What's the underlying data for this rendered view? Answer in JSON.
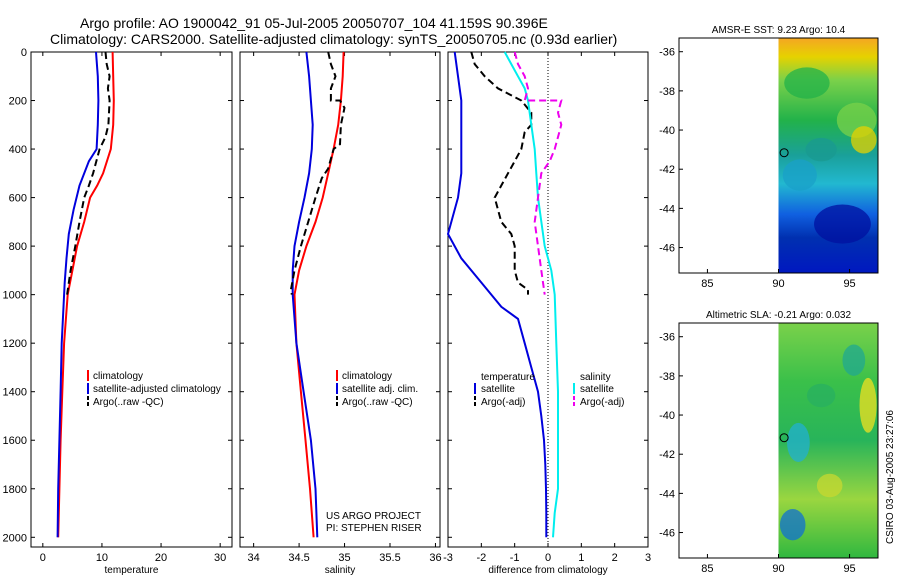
{
  "title": {
    "line1": "Argo profile: AO 1900042_91 05-Jul-2005 20050707_104 41.159S 90.396E",
    "line2": "Climatology: CARS2000. Satellite-adjusted climatology: synTS_20050705.nc (0.93d earlier)"
  },
  "credit": {
    "project": "US ARGO PROJECT",
    "pi": "PI: STEPHEN RISER",
    "stamp": "CSIRO 03-Aug-2005 23:27:06"
  },
  "colors": {
    "climatology": "#ff0000",
    "satellite": "#0000dd",
    "argo": "#000000",
    "salinity_sat": "#00eeee",
    "salinity_argo": "#ee00ee"
  },
  "chart_data": [
    {
      "type": "line",
      "id": "temperature",
      "xlabel": "temperature",
      "xlim": [
        -2,
        32
      ],
      "ylim": [
        0,
        2040
      ],
      "xticks": [
        0,
        10,
        20,
        30
      ],
      "yticks": [
        0,
        200,
        400,
        600,
        800,
        1000,
        1200,
        1400,
        1600,
        1800,
        2000
      ],
      "legend": [
        "climatology",
        "satellite-adjusted climatology",
        "Argo(..raw -QC)"
      ],
      "series": [
        {
          "name": "climatology",
          "style": "solid",
          "color": "#ff0000",
          "points": [
            [
              11.8,
              0
            ],
            [
              11.9,
              100
            ],
            [
              12.0,
              200
            ],
            [
              11.9,
              300
            ],
            [
              11.5,
              400
            ],
            [
              10.2,
              500
            ],
            [
              9.2,
              550
            ],
            [
              8.0,
              600
            ],
            [
              7.0,
              700
            ],
            [
              5.8,
              800
            ],
            [
              5.0,
              900
            ],
            [
              4.2,
              1000
            ],
            [
              3.6,
              1200
            ],
            [
              3.3,
              1400
            ],
            [
              3.0,
              1600
            ],
            [
              2.8,
              1800
            ],
            [
              2.6,
              2000
            ]
          ]
        },
        {
          "name": "satellite-adjusted climatology",
          "style": "solid",
          "color": "#0000dd",
          "points": [
            [
              9.0,
              0
            ],
            [
              9.3,
              100
            ],
            [
              9.4,
              200
            ],
            [
              9.3,
              300
            ],
            [
              9.1,
              400
            ],
            [
              7.8,
              450
            ],
            [
              6.2,
              550
            ],
            [
              5.2,
              650
            ],
            [
              4.4,
              750
            ],
            [
              4.0,
              850
            ],
            [
              3.7,
              950
            ],
            [
              3.5,
              1050
            ],
            [
              3.2,
              1200
            ],
            [
              3.0,
              1400
            ],
            [
              2.8,
              1600
            ],
            [
              2.6,
              1800
            ],
            [
              2.5,
              2000
            ]
          ]
        },
        {
          "name": "Argo(..raw -QC)",
          "style": "dashed",
          "color": "#000000",
          "points": [
            [
              10.6,
              0
            ],
            [
              10.8,
              50
            ],
            [
              11.3,
              100
            ],
            [
              11.0,
              150
            ],
            [
              11.3,
              200
            ],
            [
              11.1,
              300
            ],
            [
              10.6,
              350
            ],
            [
              9.6,
              400
            ],
            [
              8.5,
              500
            ],
            [
              7.8,
              550
            ],
            [
              7.0,
              600
            ],
            [
              6.2,
              700
            ],
            [
              5.5,
              800
            ],
            [
              4.7,
              900
            ],
            [
              4.1,
              1000
            ]
          ]
        }
      ]
    },
    {
      "type": "line",
      "id": "salinity",
      "xlabel": "salinity",
      "xlim": [
        33.85,
        36.05
      ],
      "ylim": [
        0,
        2040
      ],
      "xticks": [
        34,
        34.5,
        35,
        35.5,
        36
      ],
      "yticks": [
        0,
        200,
        400,
        600,
        800,
        1000,
        1200,
        1400,
        1600,
        1800,
        2000
      ],
      "legend": [
        "climatology",
        "satellite adj. clim.",
        "Argo(..raw -QC)"
      ],
      "series": [
        {
          "name": "climatology",
          "style": "solid",
          "color": "#ff0000",
          "points": [
            [
              34.99,
              0
            ],
            [
              34.98,
              100
            ],
            [
              34.96,
              200
            ],
            [
              34.93,
              300
            ],
            [
              34.88,
              400
            ],
            [
              34.82,
              500
            ],
            [
              34.76,
              600
            ],
            [
              34.68,
              700
            ],
            [
              34.58,
              800
            ],
            [
              34.5,
              900
            ],
            [
              34.45,
              1000
            ],
            [
              34.47,
              1200
            ],
            [
              34.52,
              1400
            ],
            [
              34.57,
              1600
            ],
            [
              34.62,
              1800
            ],
            [
              34.66,
              2000
            ]
          ]
        },
        {
          "name": "satellite adj. clim.",
          "style": "solid",
          "color": "#0000dd",
          "points": [
            [
              34.58,
              0
            ],
            [
              34.61,
              100
            ],
            [
              34.63,
              200
            ],
            [
              34.65,
              300
            ],
            [
              34.64,
              400
            ],
            [
              34.61,
              500
            ],
            [
              34.56,
              600
            ],
            [
              34.5,
              700
            ],
            [
              34.45,
              800
            ],
            [
              34.43,
              900
            ],
            [
              34.43,
              1000
            ],
            [
              34.47,
              1200
            ],
            [
              34.55,
              1400
            ],
            [
              34.63,
              1600
            ],
            [
              34.68,
              1800
            ],
            [
              34.7,
              2000
            ]
          ]
        },
        {
          "name": "Argo(..raw -QC)",
          "style": "dashed",
          "color": "#000000",
          "points": [
            [
              34.82,
              0
            ],
            [
              34.85,
              50
            ],
            [
              34.9,
              100
            ],
            [
              34.85,
              150
            ],
            [
              34.85,
              200
            ],
            [
              34.95,
              200
            ],
            [
              35.0,
              230
            ],
            [
              34.96,
              300
            ],
            [
              34.95,
              380
            ],
            [
              34.88,
              400
            ],
            [
              34.82,
              480
            ],
            [
              34.75,
              520
            ],
            [
              34.68,
              600
            ],
            [
              34.6,
              700
            ],
            [
              34.52,
              800
            ],
            [
              34.45,
              900
            ],
            [
              34.41,
              980
            ],
            [
              34.42,
              1000
            ]
          ]
        }
      ]
    },
    {
      "type": "line",
      "id": "difference",
      "xlabel": "difference from climatology",
      "xlim": [
        -3,
        3
      ],
      "ylim": [
        0,
        2040
      ],
      "xticks": [
        -3,
        -2,
        -1,
        0,
        1,
        2,
        3
      ],
      "yticks": [
        0,
        200,
        400,
        600,
        800,
        1000,
        1200,
        1400,
        1600,
        1800,
        2000
      ],
      "legend_temperature_title": "temperature",
      "legend_salinity_title": "salinity",
      "legend_temperature": [
        "satellite",
        "Argo(-adj)"
      ],
      "legend_salinity": [
        "satellite",
        "Argo(-adj)"
      ],
      "series": [
        {
          "name": "temperature satellite",
          "style": "solid",
          "color": "#0000dd",
          "points": [
            [
              -2.8,
              0
            ],
            [
              -2.7,
              100
            ],
            [
              -2.6,
              200
            ],
            [
              -2.6,
              300
            ],
            [
              -2.6,
              400
            ],
            [
              -2.6,
              500
            ],
            [
              -2.7,
              600
            ],
            [
              -3.0,
              750
            ],
            [
              -2.6,
              850
            ],
            [
              -2.0,
              950
            ],
            [
              -1.4,
              1050
            ],
            [
              -0.9,
              1100
            ],
            [
              -0.7,
              1200
            ],
            [
              -0.5,
              1300
            ],
            [
              -0.3,
              1400
            ],
            [
              -0.2,
              1500
            ],
            [
              -0.12,
              1600
            ],
            [
              -0.08,
              1700
            ],
            [
              -0.06,
              1800
            ],
            [
              -0.05,
              1900
            ],
            [
              -0.05,
              2000
            ]
          ]
        },
        {
          "name": "temperature Argo(-adj)",
          "style": "dashed",
          "color": "#000000",
          "points": [
            [
              -2.3,
              0
            ],
            [
              -2.2,
              50
            ],
            [
              -1.9,
              100
            ],
            [
              -1.5,
              150
            ],
            [
              -0.8,
              200
            ],
            [
              -0.5,
              250
            ],
            [
              -0.5,
              300
            ],
            [
              -0.7,
              330
            ],
            [
              -0.8,
              400
            ],
            [
              -1.0,
              450
            ],
            [
              -1.2,
              500
            ],
            [
              -1.4,
              550
            ],
            [
              -1.6,
              600
            ],
            [
              -1.4,
              700
            ],
            [
              -1.1,
              750
            ],
            [
              -1.0,
              800
            ],
            [
              -1.0,
              900
            ],
            [
              -0.9,
              950
            ],
            [
              -0.6,
              980
            ],
            [
              -0.6,
              1000
            ]
          ]
        },
        {
          "name": "salinity satellite",
          "style": "solid",
          "color": "#00eeee",
          "points": [
            [
              -1.3,
              0
            ],
            [
              -1.1,
              50
            ],
            [
              -0.9,
              100
            ],
            [
              -0.7,
              150
            ],
            [
              -0.6,
              200
            ],
            [
              -0.5,
              300
            ],
            [
              -0.4,
              400
            ],
            [
              -0.35,
              500
            ],
            [
              -0.3,
              600
            ],
            [
              -0.1,
              800
            ],
            [
              0.1,
              900
            ],
            [
              0.2,
              1000
            ],
            [
              0.25,
              1200
            ],
            [
              0.3,
              1400
            ],
            [
              0.3,
              1600
            ],
            [
              0.3,
              1800
            ],
            [
              0.2,
              1900
            ],
            [
              0.15,
              2000
            ]
          ]
        },
        {
          "name": "salinity Argo(-adj)",
          "style": "dashed",
          "color": "#ee00ee",
          "points": [
            [
              -1.0,
              0
            ],
            [
              -0.9,
              50
            ],
            [
              -0.7,
              100
            ],
            [
              -0.6,
              150
            ],
            [
              -0.7,
              200
            ],
            [
              0.4,
              200
            ],
            [
              0.3,
              250
            ],
            [
              0.4,
              300
            ],
            [
              0.2,
              400
            ],
            [
              0.05,
              450
            ],
            [
              -0.2,
              500
            ],
            [
              -0.3,
              600
            ],
            [
              -0.4,
              700
            ],
            [
              -0.3,
              800
            ],
            [
              -0.2,
              900
            ],
            [
              -0.1,
              1000
            ]
          ]
        }
      ]
    },
    {
      "type": "heatmap",
      "id": "sst-map",
      "title": "AMSR-E SST: 9.23 Argo: 10.4",
      "xlim": [
        83,
        97
      ],
      "ylim": [
        -47.3,
        -35.3
      ],
      "xticks": [
        85,
        90,
        95
      ],
      "yticks": [
        -36,
        -38,
        -40,
        -42,
        -44,
        -46
      ],
      "data_xrange": [
        90,
        97
      ],
      "float_position": [
        90.396,
        -41.159
      ]
    },
    {
      "type": "heatmap",
      "id": "sla-map",
      "title": "Altimetric SLA: -0.21 Argo: 0.032",
      "xlim": [
        83,
        97
      ],
      "ylim": [
        -47.3,
        -35.3
      ],
      "xticks": [
        85,
        90,
        95
      ],
      "yticks": [
        -36,
        -38,
        -40,
        -42,
        -44,
        -46
      ],
      "data_xrange": [
        90,
        97
      ],
      "float_position": [
        90.396,
        -41.159
      ]
    }
  ]
}
